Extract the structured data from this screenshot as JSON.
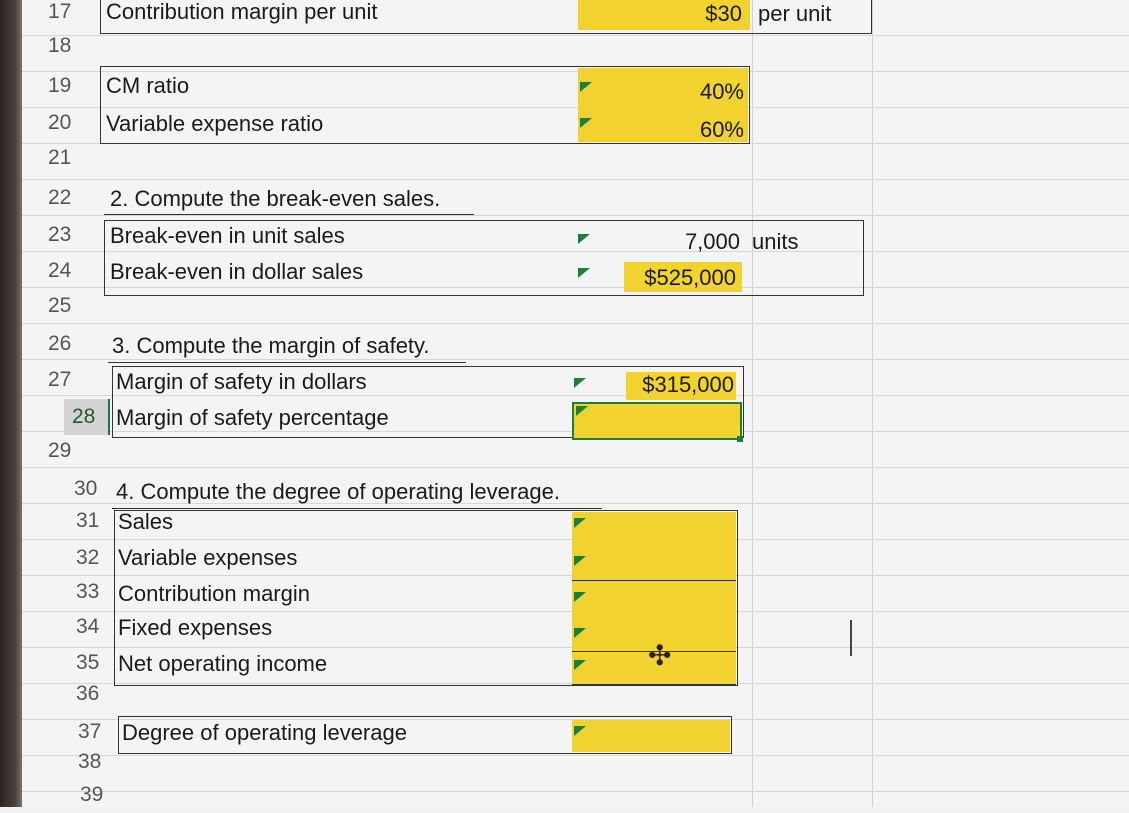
{
  "rows": [
    {
      "num": "17",
      "label": "Contribution margin per unit",
      "value": "$30",
      "unit": "per unit"
    },
    {
      "num": "18",
      "label": "",
      "value": "",
      "unit": ""
    },
    {
      "num": "19",
      "label": "CM ratio",
      "value": "40%",
      "unit": ""
    },
    {
      "num": "20",
      "label": "Variable expense ratio",
      "value": "60%",
      "unit": ""
    },
    {
      "num": "21",
      "label": "",
      "value": "",
      "unit": ""
    },
    {
      "num": "22",
      "label": "2. Compute the break-even sales.",
      "value": "",
      "unit": ""
    },
    {
      "num": "23",
      "label": "Break-even in unit sales",
      "value": "7,000",
      "unit": "units"
    },
    {
      "num": "24",
      "label": "Break-even in dollar sales",
      "value": "$525,000",
      "unit": ""
    },
    {
      "num": "25",
      "label": "",
      "value": "",
      "unit": ""
    },
    {
      "num": "26",
      "label": "3. Compute the margin of safety.",
      "value": "",
      "unit": ""
    },
    {
      "num": "27",
      "label": "Margin of safety in dollars",
      "value": "$315,000",
      "unit": ""
    },
    {
      "num": "28",
      "label": "Margin of safety percentage",
      "value": "",
      "unit": ""
    },
    {
      "num": "29",
      "label": "",
      "value": "",
      "unit": ""
    },
    {
      "num": "30",
      "label": "4. Compute the degree of operating leverage.",
      "value": "",
      "unit": ""
    },
    {
      "num": "31",
      "label": "Sales",
      "value": "",
      "unit": ""
    },
    {
      "num": "32",
      "label": "Variable expenses",
      "value": "",
      "unit": ""
    },
    {
      "num": "33",
      "label": "Contribution margin",
      "value": "",
      "unit": ""
    },
    {
      "num": "34",
      "label": "Fixed expenses",
      "value": "",
      "unit": ""
    },
    {
      "num": "35",
      "label": "Net operating income",
      "value": "",
      "unit": ""
    },
    {
      "num": "36",
      "label": "",
      "value": "",
      "unit": ""
    },
    {
      "num": "37",
      "label": "Degree of operating leverage",
      "value": "",
      "unit": ""
    },
    {
      "num": "38",
      "label": "",
      "value": "",
      "unit": ""
    },
    {
      "num": "39",
      "label": "",
      "value": "",
      "unit": ""
    }
  ],
  "active_row": "28",
  "colors": {
    "input_fill": "#f2d22e",
    "selection": "#1e7f3a"
  }
}
